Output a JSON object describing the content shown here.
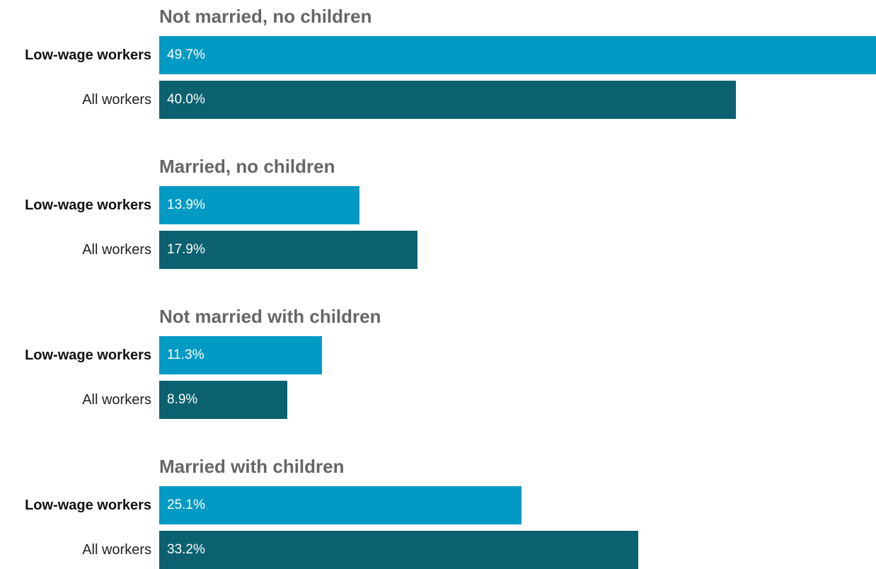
{
  "colors": {
    "low_wage": "#009ac4",
    "all_workers": "#0b6170",
    "group_title": "#666666"
  },
  "chart_data": {
    "type": "bar",
    "orientation": "horizontal",
    "grid": false,
    "legend": "none",
    "xlim": [
      0,
      49.7
    ],
    "series_names": [
      "Low-wage workers",
      "All workers"
    ],
    "groups": [
      {
        "title": "Not married, no children",
        "rows": [
          {
            "label": "Low-wage workers",
            "value": 49.7,
            "value_label": "49.7%"
          },
          {
            "label": "All workers",
            "value": 40.0,
            "value_label": "40.0%"
          }
        ]
      },
      {
        "title": "Married, no children",
        "rows": [
          {
            "label": "Low-wage workers",
            "value": 13.9,
            "value_label": "13.9%"
          },
          {
            "label": "All workers",
            "value": 17.9,
            "value_label": "17.9%"
          }
        ]
      },
      {
        "title": "Not married with children",
        "rows": [
          {
            "label": "Low-wage workers",
            "value": 11.3,
            "value_label": "11.3%"
          },
          {
            "label": "All workers",
            "value": 8.9,
            "value_label": "8.9%"
          }
        ]
      },
      {
        "title": "Married with children",
        "rows": [
          {
            "label": "Low-wage workers",
            "value": 25.1,
            "value_label": "25.1%"
          },
          {
            "label": "All workers",
            "value": 33.2,
            "value_label": "33.2%"
          }
        ]
      }
    ]
  }
}
